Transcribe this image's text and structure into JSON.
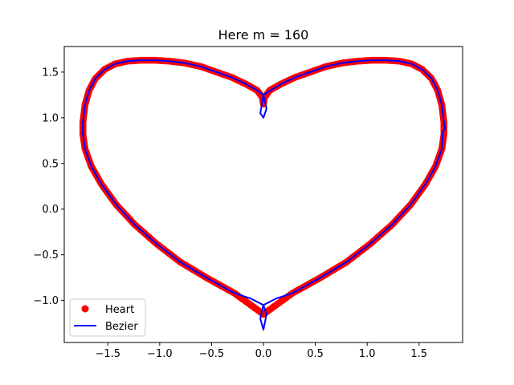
{
  "chart_data": {
    "type": "scatter",
    "title": "Here m = 160",
    "xlabel": "",
    "ylabel": "",
    "xlim": [
      -1.92,
      1.92
    ],
    "ylim": [
      -1.46,
      1.78
    ],
    "xticks": [
      -1.5,
      -1.0,
      -0.5,
      0.0,
      0.5,
      1.0,
      1.5
    ],
    "xtick_labels": [
      "−1.5",
      "−1.0",
      "−0.5",
      "0.0",
      "0.5",
      "1.0",
      "1.5"
    ],
    "yticks": [
      -1.0,
      -0.5,
      0.0,
      0.5,
      1.0,
      1.5
    ],
    "ytick_labels": [
      "−1.0",
      "−0.5",
      "0.0",
      "0.5",
      "1.0",
      "1.5"
    ],
    "grid": false,
    "legend_position": "lower-left",
    "series": [
      {
        "name": "Heart",
        "kind": "markers",
        "color": "#ff0000",
        "x": [
          0.0,
          0.28,
          0.55,
          0.8,
          1.03,
          1.24,
          1.42,
          1.56,
          1.66,
          1.72,
          1.74,
          1.74,
          1.72,
          1.68,
          1.62,
          1.53,
          1.43,
          1.31,
          1.18,
          1.05,
          0.91,
          0.76,
          0.6,
          0.45,
          0.3,
          0.17,
          0.06,
          0.01,
          0.0,
          -0.01,
          -0.06,
          -0.17,
          -0.3,
          -0.45,
          -0.6,
          -0.76,
          -0.91,
          -1.05,
          -1.18,
          -1.31,
          -1.43,
          -1.53,
          -1.62,
          -1.68,
          -1.72,
          -1.74,
          -1.74,
          -1.72,
          -1.66,
          -1.56,
          -1.42,
          -1.24,
          -1.03,
          -0.8,
          -0.55,
          -0.28,
          0.0
        ],
        "y": [
          -1.15,
          -0.92,
          -0.75,
          -0.58,
          -0.38,
          -0.17,
          0.05,
          0.27,
          0.47,
          0.66,
          0.82,
          0.95,
          1.14,
          1.3,
          1.43,
          1.53,
          1.59,
          1.62,
          1.63,
          1.63,
          1.62,
          1.6,
          1.56,
          1.5,
          1.44,
          1.37,
          1.3,
          1.22,
          1.15,
          1.22,
          1.3,
          1.37,
          1.44,
          1.5,
          1.56,
          1.6,
          1.62,
          1.63,
          1.63,
          1.62,
          1.59,
          1.53,
          1.43,
          1.3,
          1.14,
          0.95,
          0.82,
          0.66,
          0.47,
          0.27,
          0.05,
          -0.17,
          -0.38,
          -0.58,
          -0.75,
          -0.92,
          -1.15
        ]
      },
      {
        "name": "Bezier",
        "kind": "line",
        "color": "#0000ff",
        "x": [
          0.0,
          -0.03,
          0.0,
          0.03,
          0.0,
          0.17,
          0.3,
          0.45,
          0.6,
          0.76,
          0.91,
          1.05,
          1.18,
          1.31,
          1.43,
          1.53,
          1.62,
          1.68,
          1.72,
          1.74,
          1.75,
          1.73,
          1.72,
          1.66,
          1.56,
          1.42,
          1.24,
          1.03,
          0.8,
          0.55,
          0.28,
          0.12,
          0.0,
          -0.03,
          0.0,
          0.03,
          0.0,
          -0.12,
          -0.28,
          -0.55,
          -0.8,
          -1.03,
          -1.24,
          -1.42,
          -1.56,
          -1.66,
          -1.72,
          -1.74,
          -1.74,
          -1.72,
          -1.68,
          -1.62,
          -1.53,
          -1.43,
          -1.31,
          -1.18,
          -1.05,
          -0.91,
          -0.76,
          -0.6,
          -0.45,
          -0.3,
          -0.17,
          -0.06,
          0.0
        ],
        "y": [
          1.25,
          1.05,
          1.0,
          1.1,
          1.25,
          1.37,
          1.44,
          1.5,
          1.56,
          1.6,
          1.62,
          1.63,
          1.63,
          1.62,
          1.59,
          1.53,
          1.43,
          1.3,
          1.14,
          0.95,
          0.88,
          0.85,
          0.66,
          0.47,
          0.27,
          0.05,
          -0.17,
          -0.38,
          -0.58,
          -0.75,
          -0.92,
          -0.98,
          -1.05,
          -1.2,
          -1.32,
          -1.15,
          -1.05,
          -0.98,
          -0.92,
          -0.75,
          -0.58,
          -0.38,
          -0.17,
          0.05,
          0.27,
          0.47,
          0.66,
          0.82,
          0.95,
          1.14,
          1.3,
          1.43,
          1.53,
          1.59,
          1.62,
          1.63,
          1.63,
          1.62,
          1.6,
          1.56,
          1.5,
          1.44,
          1.37,
          1.3,
          1.25
        ]
      }
    ]
  }
}
